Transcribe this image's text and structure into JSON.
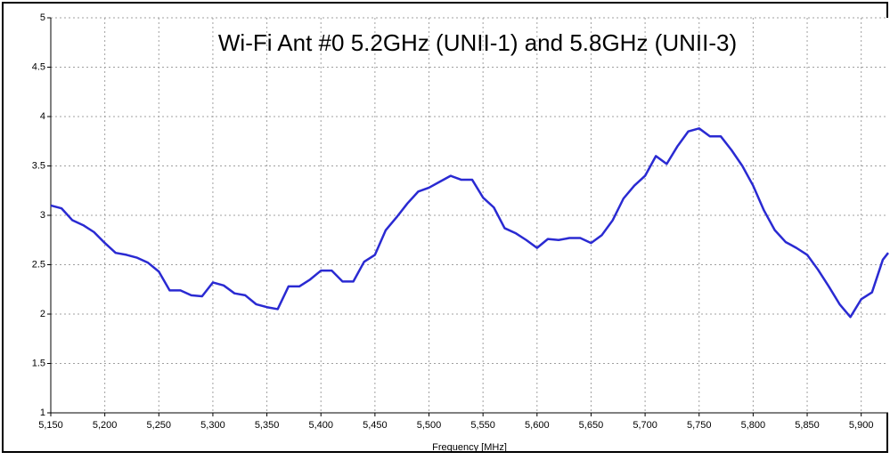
{
  "chart_data": {
    "type": "line",
    "title": "Wi-Fi Ant #0 5.2GHz (UNII-1) and 5.8GHz (UNII-3)",
    "x_label": "Frequency [MHz]",
    "x": [
      5150,
      5160,
      5170,
      5180,
      5190,
      5200,
      5210,
      5220,
      5230,
      5240,
      5250,
      5260,
      5270,
      5280,
      5290,
      5300,
      5310,
      5320,
      5330,
      5340,
      5350,
      5360,
      5370,
      5380,
      5390,
      5400,
      5410,
      5420,
      5430,
      5440,
      5450,
      5460,
      5470,
      5480,
      5490,
      5500,
      5510,
      5520,
      5530,
      5540,
      5550,
      5560,
      5570,
      5580,
      5590,
      5600,
      5610,
      5620,
      5630,
      5640,
      5650,
      5660,
      5670,
      5680,
      5690,
      5700,
      5710,
      5720,
      5730,
      5740,
      5750,
      5760,
      5770,
      5780,
      5790,
      5800,
      5810,
      5820,
      5830,
      5840,
      5850,
      5860,
      5870,
      5880,
      5890,
      5900,
      5910,
      5920,
      5925
    ],
    "series": [
      {
        "name": "Wi-Fi Ant #0",
        "color": "#2a2ad2",
        "values": [
          3.1,
          3.07,
          2.95,
          2.9,
          2.83,
          2.72,
          2.62,
          2.6,
          2.57,
          2.52,
          2.43,
          2.24,
          2.24,
          2.19,
          2.18,
          2.32,
          2.29,
          2.21,
          2.19,
          2.1,
          2.07,
          2.05,
          2.28,
          2.28,
          2.35,
          2.44,
          2.44,
          2.33,
          2.33,
          2.53,
          2.6,
          2.85,
          2.98,
          3.12,
          3.24,
          3.28,
          3.34,
          3.4,
          3.36,
          3.36,
          3.18,
          3.08,
          2.87,
          2.82,
          2.75,
          2.67,
          2.76,
          2.75,
          2.77,
          2.77,
          2.72,
          2.8,
          2.95,
          3.17,
          3.3,
          3.4,
          3.6,
          3.52,
          3.7,
          3.85,
          3.88,
          3.8,
          3.8,
          3.66,
          3.5,
          3.3,
          3.05,
          2.85,
          2.73,
          2.67,
          2.6,
          2.45,
          2.28,
          2.1,
          1.97,
          2.15,
          2.22,
          2.55,
          2.62
        ]
      }
    ],
    "xlim": [
      5150,
      5925
    ],
    "xticks": [
      {
        "value": 5150,
        "label": "5,150"
      },
      {
        "value": 5200,
        "label": "5,200"
      },
      {
        "value": 5250,
        "label": "5,250"
      },
      {
        "value": 5300,
        "label": "5,300"
      },
      {
        "value": 5350,
        "label": "5,350"
      },
      {
        "value": 5400,
        "label": "5,400"
      },
      {
        "value": 5450,
        "label": "5,450"
      },
      {
        "value": 5500,
        "label": "5,500"
      },
      {
        "value": 5550,
        "label": "5,550"
      },
      {
        "value": 5600,
        "label": "5,600"
      },
      {
        "value": 5650,
        "label": "5,650"
      },
      {
        "value": 5700,
        "label": "5,700"
      },
      {
        "value": 5750,
        "label": "5,750"
      },
      {
        "value": 5800,
        "label": "5,800"
      },
      {
        "value": 5850,
        "label": "5,850"
      },
      {
        "value": 5900,
        "label": "5,900"
      }
    ],
    "ylim": [
      1,
      5
    ],
    "yticks": [
      1,
      1.5,
      2,
      2.5,
      3,
      3.5,
      4,
      4.5,
      5
    ],
    "grid": true
  }
}
